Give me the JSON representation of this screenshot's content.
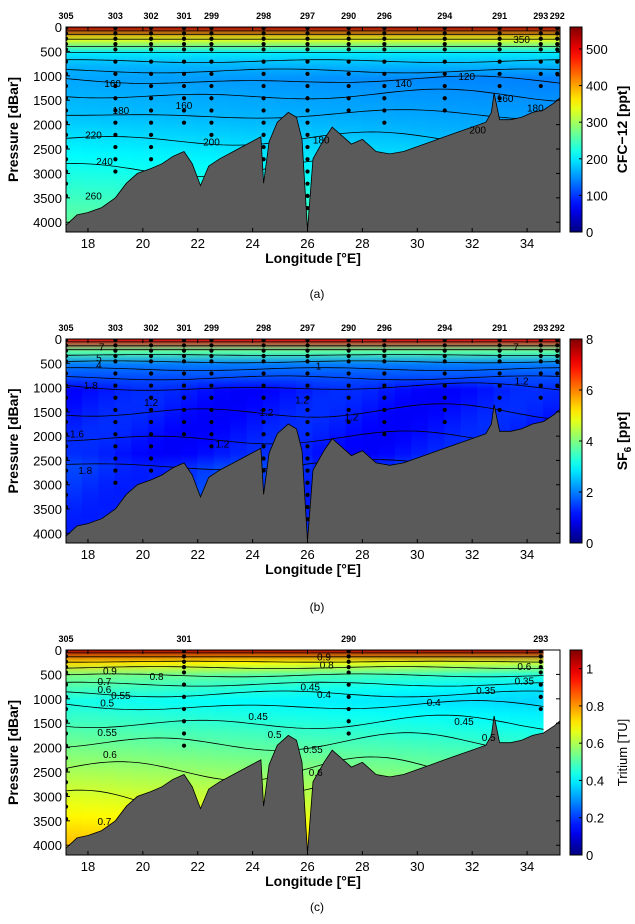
{
  "chart_data": [
    {
      "type": "heatmap",
      "caption": "(a)",
      "xlabel": "Longitude [°E]",
      "ylabel": "Pressure [dBar]",
      "colorbar_label": "CFC−12 [ppt]",
      "xlim": [
        17.2,
        35.2
      ],
      "ylim": [
        0,
        4200
      ],
      "x_ticks": [
        "18",
        "20",
        "22",
        "24",
        "26",
        "28",
        "30",
        "32",
        "34"
      ],
      "y_ticks": [
        "0",
        "500",
        "1000",
        "1500",
        "2000",
        "2500",
        "3000",
        "3500",
        "4000"
      ],
      "cbar_range": [
        0,
        560
      ],
      "cbar_ticks": [
        "0",
        "100",
        "200",
        "300",
        "400",
        "500"
      ],
      "colormap": "jet",
      "surface_value": 540,
      "stations": [
        {
          "name": "305",
          "lon": 17.2,
          "bottom": 4050
        },
        {
          "name": "303",
          "lon": 19.0,
          "bottom": 3550
        },
        {
          "name": "302",
          "lon": 20.3,
          "bottom": 3150
        },
        {
          "name": "301",
          "lon": 21.5,
          "bottom": 2500
        },
        {
          "name": "299",
          "lon": 22.5,
          "bottom": 2800
        },
        {
          "name": "298",
          "lon": 24.4,
          "bottom": 3300
        },
        {
          "name": "297",
          "lon": 26.0,
          "bottom": 4150
        },
        {
          "name": "290",
          "lon": 27.5,
          "bottom": 2250
        },
        {
          "name": "296",
          "lon": 28.8,
          "bottom": 2450
        },
        {
          "name": "294",
          "lon": 31.0,
          "bottom": 2250
        },
        {
          "name": "291",
          "lon": 33.0,
          "bottom": 1950
        },
        {
          "name": "293",
          "lon": 34.5,
          "bottom": 1700
        },
        {
          "name": "292",
          "lon": 35.1,
          "bottom": 1550
        }
      ],
      "contour_labels": [
        {
          "text": "160",
          "lon": 18.9,
          "p": 1150
        },
        {
          "text": "180",
          "lon": 19.2,
          "p": 1700
        },
        {
          "text": "220",
          "lon": 18.2,
          "p": 2200
        },
        {
          "text": "240",
          "lon": 18.6,
          "p": 2750
        },
        {
          "text": "260",
          "lon": 18.2,
          "p": 3450
        },
        {
          "text": "160",
          "lon": 21.5,
          "p": 1600
        },
        {
          "text": "200",
          "lon": 22.5,
          "p": 2350
        },
        {
          "text": "180",
          "lon": 26.5,
          "p": 2300
        },
        {
          "text": "140",
          "lon": 29.5,
          "p": 1150
        },
        {
          "text": "120",
          "lon": 31.8,
          "p": 1000
        },
        {
          "text": "160",
          "lon": 33.2,
          "p": 1450
        },
        {
          "text": "180",
          "lon": 34.3,
          "p": 1650
        },
        {
          "text": "200",
          "lon": 32.2,
          "p": 2100
        },
        {
          "text": "350",
          "lon": 33.8,
          "p": 250
        }
      ]
    },
    {
      "type": "heatmap",
      "caption": "(b)",
      "xlabel": "Longitude [°E]",
      "ylabel": "Pressure [dBar]",
      "colorbar_label": "SF6 [ppt]",
      "colorbar_label_base": "SF",
      "colorbar_label_sub": "6",
      "colorbar_label_unit": " [ppt]",
      "xlim": [
        17.2,
        35.2
      ],
      "ylim": [
        0,
        4200
      ],
      "x_ticks": [
        "18",
        "20",
        "22",
        "24",
        "26",
        "28",
        "30",
        "32",
        "34"
      ],
      "y_ticks": [
        "0",
        "500",
        "1000",
        "1500",
        "2000",
        "2500",
        "3000",
        "3500",
        "4000"
      ],
      "cbar_range": [
        0,
        8
      ],
      "cbar_ticks": [
        "0",
        "2",
        "4",
        "6",
        "8"
      ],
      "colormap": "jet",
      "surface_value": 7.2,
      "stations": [
        {
          "name": "305",
          "lon": 17.2,
          "bottom": 4050
        },
        {
          "name": "303",
          "lon": 19.0,
          "bottom": 3550
        },
        {
          "name": "302",
          "lon": 20.3,
          "bottom": 3150
        },
        {
          "name": "301",
          "lon": 21.5,
          "bottom": 2500
        },
        {
          "name": "299",
          "lon": 22.5,
          "bottom": 2800
        },
        {
          "name": "298",
          "lon": 24.4,
          "bottom": 3300
        },
        {
          "name": "297",
          "lon": 26.0,
          "bottom": 4150
        },
        {
          "name": "290",
          "lon": 27.5,
          "bottom": 2250
        },
        {
          "name": "296",
          "lon": 28.8,
          "bottom": 2450
        },
        {
          "name": "294",
          "lon": 31.0,
          "bottom": 2250
        },
        {
          "name": "291",
          "lon": 33.0,
          "bottom": 1950
        },
        {
          "name": "293",
          "lon": 34.5,
          "bottom": 1700
        },
        {
          "name": "292",
          "lon": 35.1,
          "bottom": 1550
        }
      ],
      "contour_labels": [
        {
          "text": "7",
          "lon": 18.5,
          "p": 150
        },
        {
          "text": "5",
          "lon": 18.4,
          "p": 380
        },
        {
          "text": "4",
          "lon": 18.4,
          "p": 520
        },
        {
          "text": "1.8",
          "lon": 18.1,
          "p": 950
        },
        {
          "text": "1.2",
          "lon": 20.3,
          "p": 1300
        },
        {
          "text": "1.6",
          "lon": 17.6,
          "p": 1950
        },
        {
          "text": "1.2",
          "lon": 22.9,
          "p": 2150
        },
        {
          "text": "1.8",
          "lon": 17.9,
          "p": 2700
        },
        {
          "text": "1.2",
          "lon": 24.5,
          "p": 1500
        },
        {
          "text": "1.2",
          "lon": 25.8,
          "p": 1250
        },
        {
          "text": "1",
          "lon": 26.4,
          "p": 550
        },
        {
          "text": "1.2",
          "lon": 27.6,
          "p": 1600
        },
        {
          "text": "1.2",
          "lon": 33.8,
          "p": 850
        },
        {
          "text": "7",
          "lon": 33.6,
          "p": 150
        }
      ]
    },
    {
      "type": "heatmap",
      "caption": "(c)",
      "xlabel": "Longitude [°E]",
      "ylabel": "Pressure [dBar]",
      "colorbar_label": "Tritium [TU]",
      "xlim": [
        17.2,
        35.2
      ],
      "ylim": [
        0,
        4200
      ],
      "x_ticks": [
        "18",
        "20",
        "22",
        "24",
        "26",
        "28",
        "30",
        "32",
        "34"
      ],
      "y_ticks": [
        "0",
        "500",
        "1000",
        "1500",
        "2000",
        "2500",
        "3000",
        "3500",
        "4000"
      ],
      "cbar_range": [
        0,
        1.1
      ],
      "cbar_ticks": [
        "0",
        "0.2",
        "0.4",
        "0.6",
        "0.8",
        "1"
      ],
      "colormap": "jet",
      "surface_value": 1.05,
      "data_right_lon": 34.6,
      "stations": [
        {
          "name": "305",
          "lon": 17.2,
          "bottom": 3900
        },
        {
          "name": "301",
          "lon": 21.5,
          "bottom": 2600
        },
        {
          "name": "290",
          "lon": 27.5,
          "bottom": 2300
        },
        {
          "name": "293",
          "lon": 34.5,
          "bottom": 1750
        }
      ],
      "contour_labels": [
        {
          "text": "0.9",
          "lon": 18.8,
          "p": 420
        },
        {
          "text": "0.7",
          "lon": 18.6,
          "p": 630
        },
        {
          "text": "0.6",
          "lon": 18.6,
          "p": 800
        },
        {
          "text": "0.8",
          "lon": 20.5,
          "p": 530
        },
        {
          "text": "0.55",
          "lon": 19.2,
          "p": 920
        },
        {
          "text": "0.5",
          "lon": 18.7,
          "p": 1080
        },
        {
          "text": "0.55",
          "lon": 18.7,
          "p": 1680
        },
        {
          "text": "0.6",
          "lon": 18.8,
          "p": 2130
        },
        {
          "text": "0.7",
          "lon": 18.6,
          "p": 3500
        },
        {
          "text": "0.45",
          "lon": 24.2,
          "p": 1350
        },
        {
          "text": "0.5",
          "lon": 24.8,
          "p": 1720
        },
        {
          "text": "0.55",
          "lon": 26.2,
          "p": 2030
        },
        {
          "text": "0.6",
          "lon": 26.3,
          "p": 2500
        },
        {
          "text": "0.4",
          "lon": 26.6,
          "p": 900
        },
        {
          "text": "0.45",
          "lon": 26.1,
          "p": 750
        },
        {
          "text": "0.9",
          "lon": 26.6,
          "p": 130
        },
        {
          "text": "0.8",
          "lon": 26.7,
          "p": 300
        },
        {
          "text": "0.4",
          "lon": 30.6,
          "p": 1070
        },
        {
          "text": "0.35",
          "lon": 32.5,
          "p": 820
        },
        {
          "text": "0.45",
          "lon": 31.7,
          "p": 1450
        },
        {
          "text": "0.5",
          "lon": 32.6,
          "p": 1780
        },
        {
          "text": "0.35",
          "lon": 33.9,
          "p": 620
        },
        {
          "text": "0.6",
          "lon": 33.9,
          "p": 330
        }
      ]
    }
  ]
}
